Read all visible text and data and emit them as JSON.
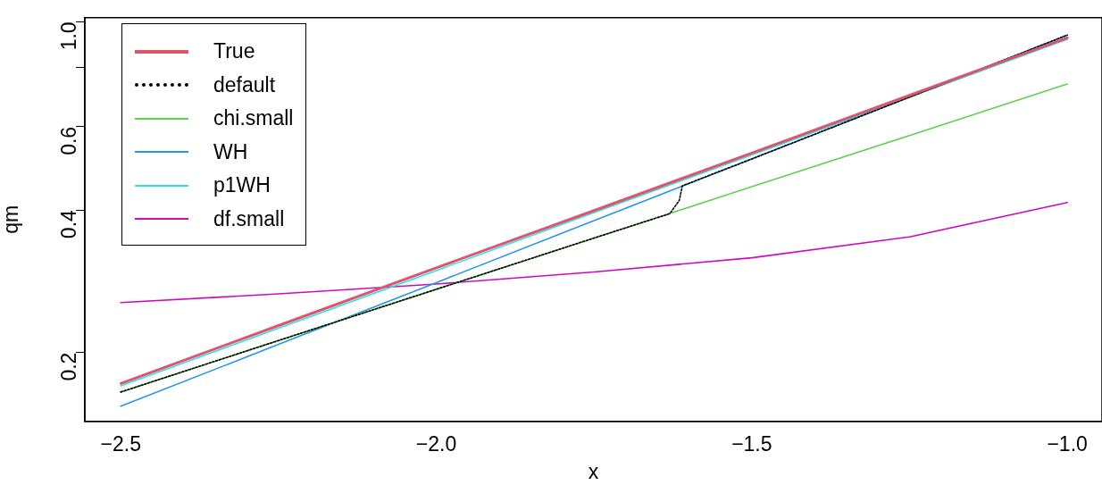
{
  "chart_data": {
    "type": "line",
    "xlabel": "x",
    "ylabel": "qm",
    "log": "y",
    "grid": false,
    "legend": "top left",
    "marker": "none",
    "xlim": [
      -2.557,
      -0.945
    ],
    "ylim": [
      0.143,
      1.02
    ],
    "xticks": [
      {
        "value": -2.5,
        "label": "−2.5"
      },
      {
        "value": -2.0,
        "label": "−2.0"
      },
      {
        "value": -1.5,
        "label": "−1.5"
      },
      {
        "value": -1.0,
        "label": "−1.0"
      }
    ],
    "yticks": [
      {
        "value": 0.2,
        "label": "0.2"
      },
      {
        "value": 0.4,
        "label": "0.4"
      },
      {
        "value": 0.6,
        "label": "0.6"
      },
      {
        "value": 0.8,
        "label": null
      },
      {
        "value": 1.0,
        "label": "1.0"
      }
    ],
    "series": [
      {
        "name": "True",
        "color": "#df536b",
        "x": [
          -2.5,
          -2.25,
          -2.0,
          -1.75,
          -1.5,
          -1.25,
          -1.0
        ],
        "values": [
          0.172,
          0.228,
          0.302,
          0.399,
          0.528,
          0.699,
          0.925
        ]
      },
      {
        "name": "default",
        "color": "#000000",
        "line_style": "dotted",
        "x": [
          -2.5,
          -2.25,
          -2.0,
          -1.75,
          -1.63,
          -1.615,
          -1.61,
          -1.5,
          -1.25,
          -1.0
        ],
        "values": [
          0.165,
          0.212,
          0.272,
          0.349,
          0.393,
          0.419,
          0.45,
          0.513,
          0.693,
          0.937
        ]
      },
      {
        "name": "chi.small",
        "color": "#61d04f",
        "x": [
          -2.5,
          -2.25,
          -2.0,
          -1.75,
          -1.5,
          -1.25,
          -1.0
        ],
        "values": [
          0.165,
          0.212,
          0.272,
          0.349,
          0.448,
          0.575,
          0.739
        ]
      },
      {
        "name": "WH",
        "color": "#2297e6",
        "x": [
          -2.5,
          -2.25,
          -2.0,
          -1.75,
          -1.5,
          -1.25,
          -1.0
        ],
        "values": [
          0.154,
          0.208,
          0.281,
          0.38,
          0.513,
          0.693,
          0.937
        ]
      },
      {
        "name": "p1WH",
        "color": "#28e2e5",
        "x": [
          -2.5,
          -2.25,
          -2.0,
          -1.75,
          -1.5,
          -1.25,
          -1.0
        ],
        "values": [
          0.17,
          0.225,
          0.298,
          0.395,
          0.523,
          0.693,
          0.918
        ]
      },
      {
        "name": "df.small",
        "color": "#cd0bbc",
        "x": [
          -2.5,
          -2.25,
          -2.0,
          -1.75,
          -1.5,
          -1.25,
          -1.0
        ],
        "values": [
          0.255,
          0.266,
          0.279,
          0.296,
          0.317,
          0.351,
          0.415
        ]
      }
    ]
  }
}
